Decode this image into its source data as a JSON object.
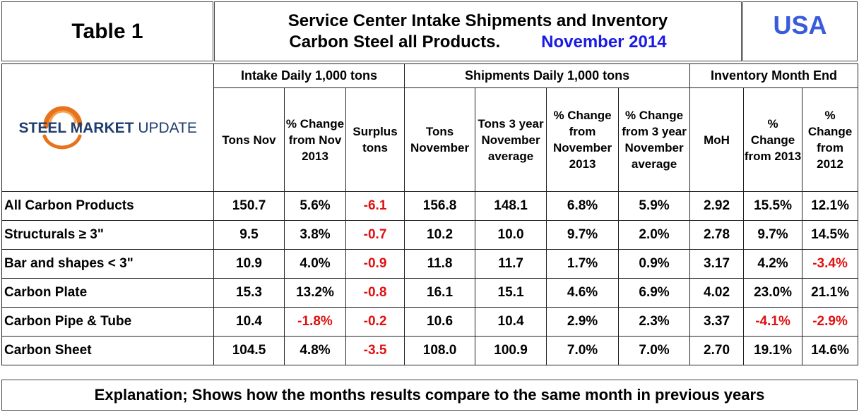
{
  "header": {
    "table_title": "Table 1",
    "heading_line1": "Service Center Intake Shipments and Inventory",
    "heading_line2": "Carbon Steel all Products.",
    "period": "November 2014",
    "country": "USA"
  },
  "logo": {
    "steel": "STEEL",
    "market": "MARKET",
    "update": "UPDATE"
  },
  "groups": {
    "intake": "Intake Daily 1,000 tons",
    "shipments": "Shipments Daily 1,000 tons",
    "inventory": "Inventory Month End"
  },
  "columns": {
    "tons_nov": "Tons Nov",
    "pct_change_nov2013": "% Change from Nov 2013",
    "surplus_tons": "Surplus tons",
    "tons_november": "Tons November",
    "tons_3yr_avg": "Tons 3 year November average",
    "pct_change_nov2013_ship": "% Change from November 2013",
    "pct_change_3yr_avg": "% Change from 3 year November average",
    "moh": "MoH",
    "pct_change_2013": "% Change from 2013",
    "pct_change_2012": "% Change from 2012"
  },
  "rows": [
    {
      "label": "All Carbon Products",
      "values": [
        "150.7",
        "5.6%",
        "-6.1",
        "156.8",
        "148.1",
        "6.8%",
        "5.9%",
        "2.92",
        "15.5%",
        "12.1%"
      ]
    },
    {
      "label": "Structurals ≥ 3\"",
      "values": [
        "9.5",
        "3.8%",
        "-0.7",
        "10.2",
        "10.0",
        "9.7%",
        "2.0%",
        "2.78",
        "9.7%",
        "14.5%"
      ]
    },
    {
      "label": "Bar and shapes < 3\"",
      "values": [
        "10.9",
        "4.0%",
        "-0.9",
        "11.8",
        "11.7",
        "1.7%",
        "0.9%",
        "3.17",
        "4.2%",
        "-3.4%"
      ]
    },
    {
      "label": "Carbon Plate",
      "values": [
        "15.3",
        "13.2%",
        "-0.8",
        "16.1",
        "15.1",
        "4.6%",
        "6.9%",
        "4.02",
        "23.0%",
        "21.1%"
      ]
    },
    {
      "label": "Carbon Pipe & Tube",
      "values": [
        "10.4",
        "-1.8%",
        "-0.2",
        "10.6",
        "10.4",
        "2.9%",
        "2.3%",
        "3.37",
        "-4.1%",
        "-2.9%"
      ]
    },
    {
      "label": "Carbon Sheet",
      "values": [
        "104.5",
        "4.8%",
        "-3.5",
        "108.0",
        "100.9",
        "7.0%",
        "7.0%",
        "2.70",
        "19.1%",
        "14.6%"
      ]
    }
  ],
  "explanation": "Explanation; Shows how the months results compare to the same month in previous years",
  "colors": {
    "negative": "#e01010",
    "period": "#1a1ae6",
    "country": "#3a5bdc",
    "logo_orange": "#e8731c",
    "logo_navy": "#1f3e6e"
  }
}
